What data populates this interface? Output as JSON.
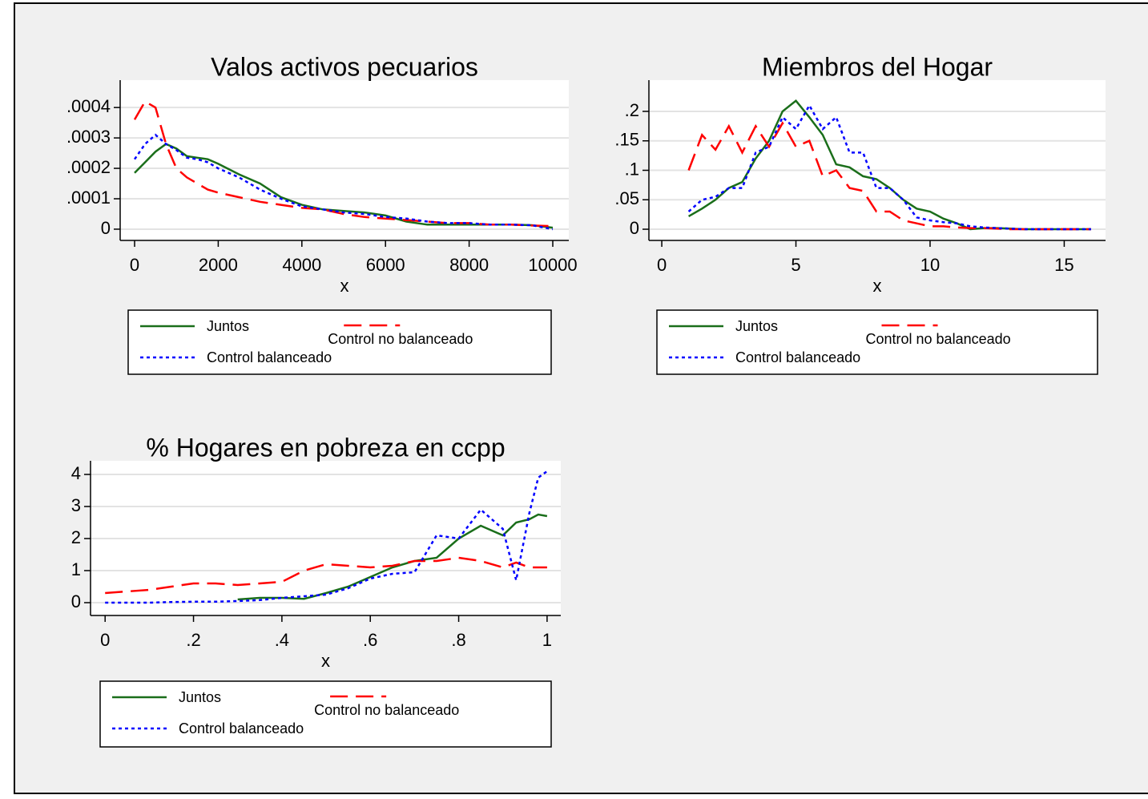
{
  "chart_data": [
    {
      "type": "line",
      "title": "Valos activos pecuarios",
      "xlabel": "x",
      "x": [
        0,
        250,
        500,
        750,
        1000,
        1250,
        1500,
        1750,
        2000,
        2500,
        3000,
        3500,
        4000,
        4500,
        5000,
        5500,
        6000,
        6500,
        7000,
        7500,
        8000,
        8500,
        9000,
        9500,
        10000
      ],
      "series": [
        {
          "name": "Juntos",
          "color": "#1a6e1a",
          "dash": "solid",
          "values": [
            0.000185,
            0.00022,
            0.000255,
            0.00028,
            0.000265,
            0.00024,
            0.000235,
            0.00023,
            0.000215,
            0.00018,
            0.00015,
            0.000105,
            8e-05,
            6.5e-05,
            6e-05,
            5.5e-05,
            4.5e-05,
            2.5e-05,
            1.5e-05,
            1.5e-05,
            1.5e-05,
            1.5e-05,
            1.5e-05,
            1.3e-05,
            5e-06
          ]
        },
        {
          "name": "Control no balanceado",
          "color": "#ff0000",
          "dash": "dashed",
          "values": [
            0.00036,
            0.00042,
            0.0004,
            0.00028,
            0.0002,
            0.00017,
            0.00015,
            0.00013,
            0.00012,
            0.000105,
            9e-05,
            8e-05,
            7e-05,
            6.5e-05,
            5e-05,
            4e-05,
            3.5e-05,
            3e-05,
            2.5e-05,
            2e-05,
            2e-05,
            1.5e-05,
            1.5e-05,
            1.2e-05,
            1e-05
          ]
        },
        {
          "name": "Control balanceado",
          "color": "#0000ff",
          "dash": "dotted",
          "values": [
            0.00023,
            0.00028,
            0.00031,
            0.00028,
            0.00026,
            0.000235,
            0.00023,
            0.00022,
            0.0002,
            0.00017,
            0.00013,
            0.0001,
            7.5e-05,
            6.5e-05,
            5.5e-05,
            5e-05,
            4e-05,
            3.5e-05,
            2.5e-05,
            2e-05,
            2e-05,
            1.5e-05,
            1.5e-05,
            1.3e-05,
            0
          ]
        }
      ],
      "xlim": [
        -345,
        10383
      ],
      "ylim": [
        -3.7e-05,
        0.00049
      ],
      "xticks": [
        0,
        2000,
        4000,
        6000,
        8000,
        10000
      ],
      "yticks": [
        0,
        {
          "value": 0.0001,
          "label": ".0001"
        },
        {
          "value": 0.0002,
          "label": ".0002"
        },
        {
          "value": 0.0003,
          "label": ".0003"
        },
        {
          "value": 0.0004,
          "label": ".0004"
        }
      ],
      "grid": true
    },
    {
      "type": "line",
      "title": "Miembros del Hogar",
      "xlabel": "x",
      "x": [
        1,
        1.5,
        2,
        2.5,
        3,
        3.5,
        4,
        4.5,
        5,
        5.5,
        6,
        6.5,
        7,
        7.5,
        8,
        8.5,
        9,
        9.5,
        10,
        10.5,
        11,
        11.5,
        12,
        12.5,
        13,
        13.5,
        14,
        14.5,
        15,
        15.5,
        16
      ],
      "series": [
        {
          "name": "Juntos",
          "color": "#1a6e1a",
          "dash": "solid",
          "values": [
            0.022,
            0.035,
            0.05,
            0.07,
            0.08,
            0.12,
            0.15,
            0.2,
            0.218,
            0.19,
            0.16,
            0.11,
            0.105,
            0.09,
            0.085,
            0.07,
            0.05,
            0.035,
            0.03,
            0.018,
            0.01,
            0,
            0.002,
            0.002,
            0.001,
            0,
            0,
            0,
            0,
            0,
            0
          ]
        },
        {
          "name": "Control no balanceado",
          "color": "#ff0000",
          "dash": "dashed",
          "values": [
            0.1,
            0.16,
            0.135,
            0.175,
            0.13,
            0.175,
            0.14,
            0.18,
            0.14,
            0.15,
            0.09,
            0.1,
            0.07,
            0.065,
            0.03,
            0.03,
            0.015,
            0.01,
            0.005,
            0.005,
            0.003,
            0.002,
            0.002,
            0.001,
            0,
            0,
            0,
            0,
            0,
            0,
            0
          ]
        },
        {
          "name": "Control balanceado",
          "color": "#0000ff",
          "dash": "dotted",
          "values": [
            0.03,
            0.05,
            0.055,
            0.07,
            0.07,
            0.13,
            0.14,
            0.19,
            0.17,
            0.21,
            0.17,
            0.19,
            0.13,
            0.13,
            0.07,
            0.07,
            0.05,
            0.02,
            0.015,
            0.012,
            0.01,
            0.005,
            0.003,
            0.002,
            0.001,
            0,
            0,
            0,
            0,
            0,
            0
          ]
        }
      ],
      "xlim": [
        -0.48,
        16.54
      ],
      "ylim": [
        -0.019,
        0.253
      ],
      "xticks": [
        0,
        5,
        10,
        15
      ],
      "yticks": [
        0,
        {
          "value": 0.05,
          "label": ".05"
        },
        {
          "value": 0.1,
          "label": ".1"
        },
        {
          "value": 0.15,
          "label": ".15"
        },
        {
          "value": 0.2,
          "label": ".2"
        }
      ],
      "grid": true
    },
    {
      "type": "line",
      "title": "% Hogares en pobreza en ccpp",
      "xlabel": "x",
      "x": [
        0,
        0.05,
        0.1,
        0.15,
        0.2,
        0.25,
        0.3,
        0.35,
        0.4,
        0.45,
        0.5,
        0.55,
        0.6,
        0.65,
        0.7,
        0.75,
        0.8,
        0.85,
        0.9,
        0.93,
        0.96,
        0.98,
        1
      ],
      "series": [
        {
          "name": "Juntos",
          "color": "#1a6e1a",
          "dash": "solid",
          "values": [
            null,
            null,
            null,
            null,
            null,
            null,
            0.1,
            0.15,
            0.15,
            0.12,
            0.3,
            0.5,
            0.8,
            1.1,
            1.3,
            1.4,
            2.0,
            2.4,
            2.1,
            2.5,
            2.6,
            2.75,
            2.7
          ]
        },
        {
          "name": "Control no balanceado",
          "color": "#ff0000",
          "dash": "dashed",
          "values": [
            0.3,
            0.35,
            0.4,
            0.5,
            0.6,
            0.6,
            0.55,
            0.6,
            0.65,
            1.0,
            1.2,
            1.15,
            1.1,
            1.15,
            1.3,
            1.3,
            1.4,
            1.3,
            1.1,
            1.25,
            1.1,
            1.1,
            1.1
          ]
        },
        {
          "name": "Control balanceado",
          "color": "#0000ff",
          "dash": "dotted",
          "values": [
            0,
            0,
            0,
            0.02,
            0.03,
            0.03,
            0.05,
            0.08,
            0.15,
            0.2,
            0.25,
            0.45,
            0.75,
            0.9,
            0.95,
            2.1,
            2.0,
            2.9,
            2.3,
            0.7,
            2.8,
            3.9,
            4.1
          ]
        }
      ],
      "xlim": [
        -0.033,
        1.031
      ],
      "ylim": [
        -0.4,
        4.425
      ],
      "xticks": [
        0,
        {
          "value": 0.2,
          "label": ".2"
        },
        {
          "value": 0.4,
          "label": ".4"
        },
        {
          "value": 0.6,
          "label": ".6"
        },
        {
          "value": 0.8,
          "label": ".8"
        },
        1
      ],
      "yticks": [
        0,
        1,
        2,
        3,
        4
      ],
      "grid": true
    }
  ]
}
